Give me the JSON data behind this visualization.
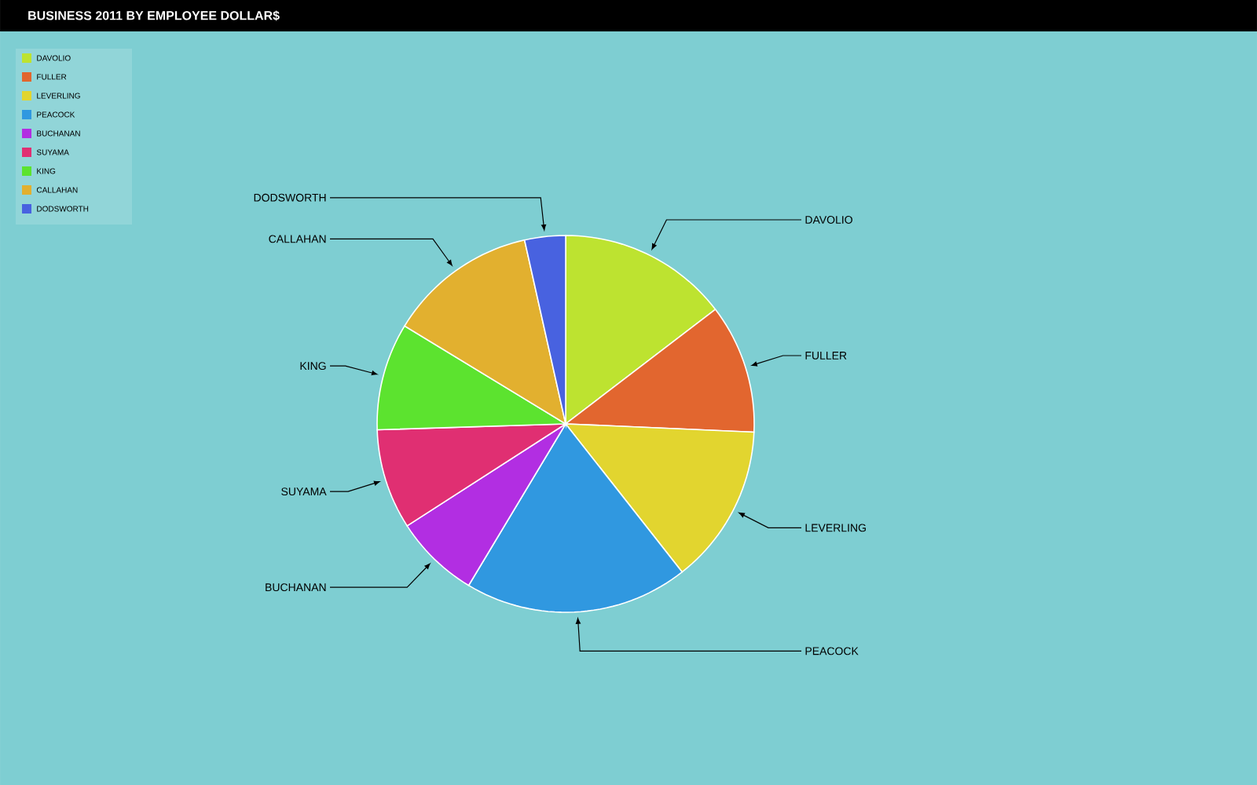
{
  "chart_data": {
    "type": "pie",
    "title": "BUSINESS 2011 BY EMPLOYEE DOLLAR$",
    "categories": [
      "DAVOLIO",
      "FULLER",
      "LEVERLING",
      "PEACOCK",
      "BUCHANAN",
      "SUYAMA",
      "KING",
      "CALLAHAN",
      "DODSWORTH"
    ],
    "values": [
      14.6,
      11.1,
      13.7,
      19.2,
      7.3,
      8.6,
      9.2,
      12.8,
      3.5
    ],
    "colors": [
      "#bde330",
      "#e2662f",
      "#e2d52f",
      "#3098e0",
      "#b22ee2",
      "#e02f72",
      "#5ce32f",
      "#e2b02f",
      "#4862e0"
    ],
    "legend": "top left"
  }
}
